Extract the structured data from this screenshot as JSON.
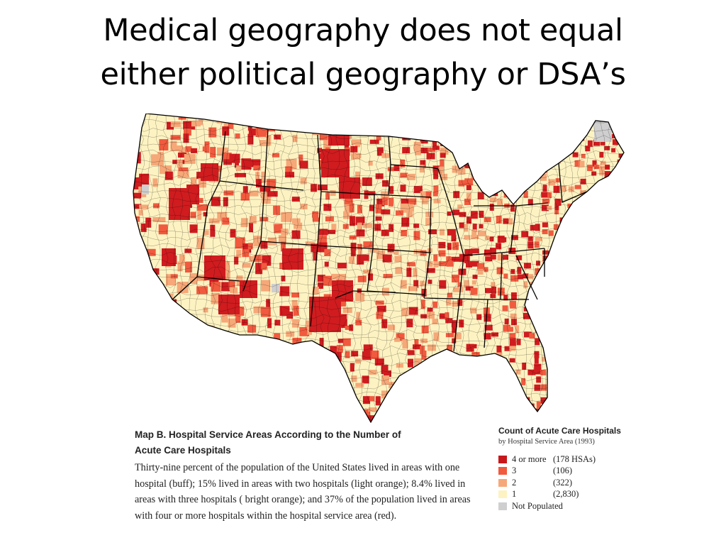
{
  "slide": {
    "title_line1": "Medical geography does not equal",
    "title_line2": "either political geography or DSA’s"
  },
  "map": {
    "colors": {
      "four_or_more": "#d01c1f",
      "three": "#f15a3e",
      "two": "#f6a878",
      "one": "#fdf3c2",
      "not_populated": "#cfcfcf",
      "boundary": "#000000"
    }
  },
  "caption": {
    "heading_line1": "Map B. Hospital Service Areas According to the Number of",
    "heading_line2": "Acute Care Hospitals",
    "body": "Thirty-nine percent of the population of the United States lived in areas with one hospital (buff); 15% lived in areas with two hospitals (light orange); 8.4% lived in areas with three hospitals ( bright orange); and 37% of the population lived in areas with four or more hospitals within the hospital service area (red)."
  },
  "legend": {
    "title": "Count of Acute Care Hospitals",
    "subtitle": "by Hospital Service Area (1993)",
    "items": [
      {
        "label": "4 or more",
        "count": "(178 HSAs)",
        "color": "#c8171b"
      },
      {
        "label": "3",
        "count": "(106)",
        "color": "#f15a3e"
      },
      {
        "label": "2",
        "count": "(322)",
        "color": "#f6a878"
      },
      {
        "label": "1",
        "count": "(2,830)",
        "color": "#fdf3c2"
      },
      {
        "label": "Not Populated",
        "count": "",
        "color": "#cfcfcf"
      }
    ]
  }
}
